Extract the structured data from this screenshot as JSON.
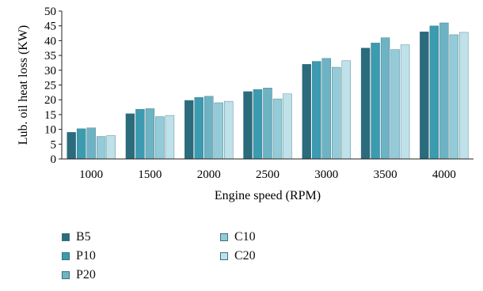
{
  "chart_data": {
    "type": "bar",
    "title": "",
    "xlabel": "Engine speed (RPM)",
    "ylabel": "Lub. oil heat loss (KW)",
    "categories": [
      "1000",
      "1500",
      "2000",
      "2500",
      "3000",
      "3500",
      "4000"
    ],
    "ylim": [
      0,
      50
    ],
    "yticks": [
      0,
      5,
      10,
      15,
      20,
      25,
      30,
      35,
      40,
      45,
      50
    ],
    "grid": false,
    "legend_position": "bottom-left",
    "series": [
      {
        "name": "B5",
        "color": "#2a6b7c",
        "values": [
          9.0,
          15.3,
          19.8,
          22.8,
          32.0,
          37.5,
          43.0
        ]
      },
      {
        "name": "P10",
        "color": "#3b9bb0",
        "values": [
          10.2,
          16.8,
          20.8,
          23.5,
          33.0,
          39.2,
          45.0
        ]
      },
      {
        "name": "P20",
        "color": "#6db3c4",
        "values": [
          10.5,
          17.0,
          21.2,
          24.0,
          34.0,
          41.0,
          46.0
        ]
      },
      {
        "name": "C10",
        "color": "#93cbd8",
        "values": [
          7.6,
          14.3,
          19.0,
          20.3,
          31.0,
          37.0,
          42.0
        ]
      },
      {
        "name": "C20",
        "color": "#bfe1ea",
        "values": [
          7.9,
          14.7,
          19.5,
          22.0,
          33.2,
          38.6,
          42.8
        ]
      }
    ]
  }
}
